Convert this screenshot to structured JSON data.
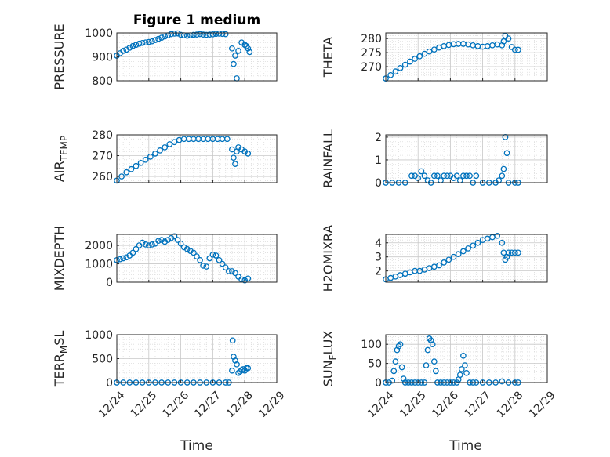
{
  "figure": {
    "title": "Figure 1 medium",
    "xlabel": "Time",
    "marker_color": "#0072BD",
    "grid": true,
    "minor_grid": true,
    "marker": "open-circle"
  },
  "chart_data": [
    {
      "type": "scatter",
      "name": "pressure",
      "ylabel": "PRESSURE",
      "ylabel_sub": "",
      "ylim": [
        800,
        1000
      ],
      "yticks": [
        800,
        900,
        1000
      ],
      "xlim": [
        0,
        5
      ],
      "x": [
        0.0,
        0.1,
        0.2,
        0.3,
        0.4,
        0.5,
        0.6,
        0.7,
        0.8,
        0.9,
        1.0,
        1.1,
        1.2,
        1.3,
        1.4,
        1.5,
        1.6,
        1.7,
        1.8,
        1.9,
        2.0,
        2.1,
        2.2,
        2.3,
        2.4,
        2.5,
        2.6,
        2.7,
        2.8,
        2.9,
        3.0,
        3.1,
        3.2,
        3.3,
        3.4,
        3.6,
        3.65,
        3.7,
        3.75,
        3.8,
        3.9,
        4.0,
        4.05,
        4.1,
        4.15
      ],
      "y": [
        905,
        915,
        925,
        930,
        938,
        945,
        950,
        955,
        958,
        960,
        962,
        965,
        970,
        975,
        980,
        985,
        990,
        995,
        997,
        998,
        992,
        990,
        988,
        990,
        992,
        993,
        995,
        993,
        992,
        993,
        994,
        996,
        997,
        996,
        995,
        935,
        870,
        905,
        810,
        925,
        960,
        950,
        945,
        935,
        920
      ]
    },
    {
      "type": "scatter",
      "name": "theta",
      "ylabel": "THETA",
      "ylabel_sub": "",
      "ylim": [
        265,
        282
      ],
      "yticks": [
        270,
        275,
        280
      ],
      "xlim": [
        0,
        5
      ],
      "x": [
        0.0,
        0.15,
        0.3,
        0.45,
        0.6,
        0.75,
        0.9,
        1.05,
        1.2,
        1.35,
        1.5,
        1.65,
        1.8,
        1.95,
        2.1,
        2.25,
        2.4,
        2.55,
        2.7,
        2.85,
        3.0,
        3.15,
        3.3,
        3.45,
        3.6,
        3.65,
        3.7,
        3.8,
        3.9,
        4.0,
        4.1
      ],
      "y": [
        265.8,
        267,
        268.3,
        269.5,
        270.7,
        271.8,
        272.8,
        273.7,
        274.6,
        275.4,
        276.1,
        276.8,
        277.3,
        277.7,
        278,
        278.1,
        278.1,
        277.9,
        277.6,
        277.3,
        277.1,
        277.3,
        277.6,
        277.9,
        277.6,
        279,
        281,
        280,
        277,
        276,
        276
      ]
    },
    {
      "type": "scatter",
      "name": "air-temp",
      "ylabel": "AIR",
      "ylabel_sub": "TEMP",
      "ylim": [
        257,
        280
      ],
      "yticks": [
        260,
        270,
        280
      ],
      "xlim": [
        0,
        5
      ],
      "x": [
        0.0,
        0.15,
        0.3,
        0.45,
        0.6,
        0.75,
        0.9,
        1.05,
        1.2,
        1.35,
        1.5,
        1.65,
        1.8,
        1.95,
        2.1,
        2.25,
        2.4,
        2.55,
        2.7,
        2.85,
        3.0,
        3.15,
        3.3,
        3.45,
        3.6,
        3.65,
        3.7,
        3.75,
        3.8,
        3.9,
        4.0,
        4.1
      ],
      "y": [
        258,
        260,
        262,
        263.5,
        265,
        266.5,
        268,
        269.5,
        271,
        272.5,
        274,
        275.5,
        276.5,
        277.5,
        278,
        278,
        278,
        278,
        278,
        278,
        278,
        278,
        278,
        278,
        273,
        269,
        266,
        272,
        274,
        273,
        272,
        271
      ]
    },
    {
      "type": "scatter",
      "name": "rainfall",
      "ylabel": "RAINFALL",
      "ylabel_sub": "",
      "ylim": [
        0,
        2.1
      ],
      "yticks": [
        0,
        1,
        2
      ],
      "xlim": [
        0,
        5
      ],
      "x": [
        0.0,
        0.2,
        0.4,
        0.6,
        0.8,
        0.9,
        1.0,
        1.1,
        1.2,
        1.3,
        1.4,
        1.5,
        1.6,
        1.7,
        1.8,
        1.9,
        2.0,
        2.1,
        2.2,
        2.3,
        2.4,
        2.5,
        2.6,
        2.7,
        2.8,
        3.0,
        3.2,
        3.4,
        3.5,
        3.6,
        3.65,
        3.7,
        3.75,
        3.8,
        4.0,
        4.1
      ],
      "y": [
        0,
        0,
        0,
        0,
        0.3,
        0.3,
        0.2,
        0.5,
        0.3,
        0.1,
        0,
        0.3,
        0.3,
        0.1,
        0.3,
        0.3,
        0.3,
        0.2,
        0.3,
        0.1,
        0.3,
        0.3,
        0.3,
        0,
        0.3,
        0,
        0,
        0,
        0.1,
        0.3,
        0.6,
        2.0,
        1.3,
        0,
        0,
        0
      ]
    },
    {
      "type": "scatter",
      "name": "mixdepth",
      "ylabel": "MIXDEPTH",
      "ylabel_sub": "",
      "ylim": [
        0,
        2600
      ],
      "yticks": [
        0,
        1000,
        2000
      ],
      "xlim": [
        0,
        5
      ],
      "x": [
        0.0,
        0.1,
        0.2,
        0.3,
        0.4,
        0.5,
        0.6,
        0.7,
        0.8,
        0.9,
        1.0,
        1.1,
        1.2,
        1.3,
        1.4,
        1.5,
        1.6,
        1.7,
        1.8,
        1.9,
        2.0,
        2.1,
        2.2,
        2.3,
        2.4,
        2.5,
        2.6,
        2.7,
        2.8,
        2.9,
        3.0,
        3.1,
        3.2,
        3.3,
        3.4,
        3.5,
        3.6,
        3.7,
        3.8,
        3.9,
        4.0,
        4.1
      ],
      "y": [
        1200,
        1250,
        1300,
        1350,
        1450,
        1600,
        1800,
        2000,
        2150,
        2050,
        2000,
        2050,
        2100,
        2250,
        2300,
        2200,
        2300,
        2400,
        2500,
        2300,
        2100,
        1900,
        1800,
        1700,
        1600,
        1400,
        1200,
        900,
        850,
        1300,
        1500,
        1450,
        1200,
        1000,
        800,
        600,
        600,
        500,
        300,
        150,
        100,
        200
      ]
    },
    {
      "type": "scatter",
      "name": "h2omixra",
      "ylabel": "H2OMIXRA",
      "ylabel_sub": "",
      "ylim": [
        1.2,
        4.6
      ],
      "yticks": [
        2,
        3,
        4
      ],
      "xlim": [
        0,
        5
      ],
      "x": [
        0.0,
        0.15,
        0.3,
        0.45,
        0.6,
        0.75,
        0.9,
        1.05,
        1.2,
        1.35,
        1.5,
        1.65,
        1.8,
        1.95,
        2.1,
        2.25,
        2.4,
        2.55,
        2.7,
        2.85,
        3.0,
        3.15,
        3.3,
        3.45,
        3.6,
        3.65,
        3.7,
        3.75,
        3.8,
        3.9,
        4.0,
        4.1
      ],
      "y": [
        1.4,
        1.5,
        1.6,
        1.7,
        1.8,
        1.9,
        2.0,
        2.0,
        2.1,
        2.2,
        2.3,
        2.4,
        2.6,
        2.8,
        3.0,
        3.2,
        3.4,
        3.6,
        3.8,
        4.0,
        4.2,
        4.3,
        4.4,
        4.5,
        4.0,
        3.3,
        2.8,
        3.0,
        3.3,
        3.3,
        3.3,
        3.3
      ]
    },
    {
      "type": "scatter",
      "name": "terr-msl",
      "ylabel": "TERR",
      "ylabel_sub": "M",
      "ylabel_suffix": "SL",
      "ylim": [
        0,
        1000
      ],
      "yticks": [
        0,
        500,
        1000
      ],
      "xlim": [
        0,
        5
      ],
      "x": [
        0.0,
        0.2,
        0.4,
        0.6,
        0.8,
        1.0,
        1.2,
        1.4,
        1.6,
        1.8,
        2.0,
        2.2,
        2.4,
        2.6,
        2.8,
        3.0,
        3.2,
        3.4,
        3.5,
        3.6,
        3.62,
        3.65,
        3.7,
        3.75,
        3.8,
        3.85,
        3.9,
        3.95,
        4.0,
        4.05,
        4.1
      ],
      "y": [
        0,
        0,
        0,
        0,
        0,
        0,
        0,
        0,
        0,
        0,
        0,
        0,
        0,
        0,
        0,
        0,
        0,
        0,
        0,
        250,
        880,
        540,
        460,
        380,
        200,
        230,
        260,
        280,
        250,
        300,
        300
      ]
    },
    {
      "type": "scatter",
      "name": "sun-flux",
      "ylabel": "SUN",
      "ylabel_sub": "F",
      "ylabel_suffix": "LUX",
      "ylim": [
        0,
        125
      ],
      "yticks": [
        0,
        50,
        100
      ],
      "xlim": [
        0,
        5
      ],
      "x": [
        0.0,
        0.1,
        0.2,
        0.25,
        0.3,
        0.35,
        0.4,
        0.45,
        0.5,
        0.55,
        0.6,
        0.7,
        0.8,
        0.9,
        1.0,
        1.1,
        1.2,
        1.25,
        1.3,
        1.35,
        1.4,
        1.45,
        1.5,
        1.55,
        1.6,
        1.7,
        1.8,
        1.9,
        2.0,
        2.1,
        2.2,
        2.25,
        2.3,
        2.35,
        2.4,
        2.45,
        2.5,
        2.6,
        2.7,
        2.8,
        3.0,
        3.2,
        3.4,
        3.6,
        3.8,
        4.0,
        4.1
      ],
      "y": [
        0,
        0,
        5,
        30,
        55,
        85,
        95,
        100,
        40,
        10,
        0,
        0,
        0,
        0,
        0,
        0,
        0,
        45,
        85,
        115,
        110,
        100,
        55,
        30,
        0,
        0,
        0,
        0,
        0,
        0,
        0,
        8,
        20,
        35,
        70,
        45,
        25,
        0,
        0,
        0,
        0,
        0,
        0,
        3,
        0,
        0,
        0
      ]
    }
  ],
  "x_ticks": [
    "12/24",
    "12/25",
    "12/26",
    "12/27",
    "12/28",
    "12/29"
  ]
}
